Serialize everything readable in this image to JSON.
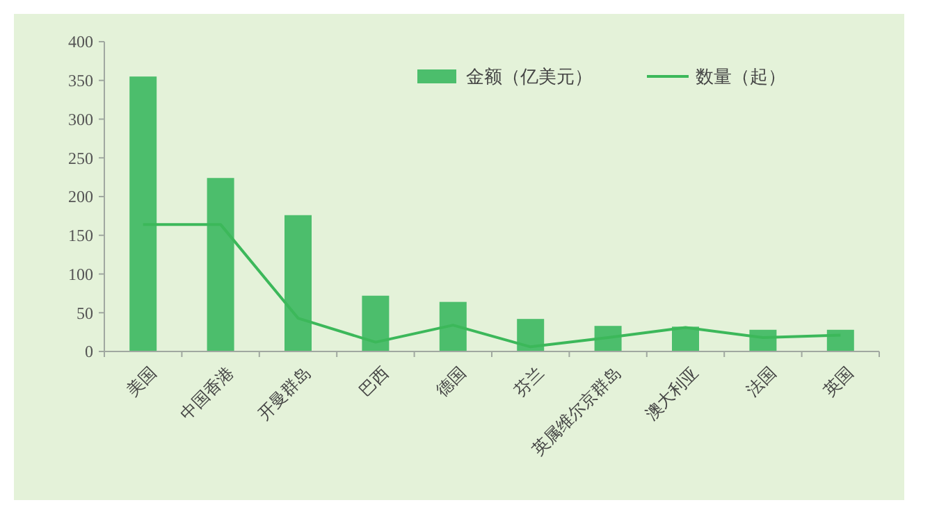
{
  "chart_data": {
    "type": "bar",
    "categories": [
      "美国",
      "中国香港",
      "开曼群岛",
      "巴西",
      "德国",
      "芬兰",
      "英属维尔京群岛",
      "澳大利亚",
      "法国",
      "英国"
    ],
    "series": [
      {
        "name": "金额（亿美元）",
        "color": "#4cbe6c",
        "values": [
          355,
          224,
          176,
          72,
          64,
          42,
          33,
          32,
          28,
          28
        ]
      },
      {
        "name": "数量（起）",
        "type": "line",
        "color": "#3cb85a",
        "values": [
          164,
          164,
          43,
          12,
          34,
          6,
          18,
          31,
          18,
          21
        ]
      }
    ],
    "ylim": [
      0,
      400
    ],
    "yticks": [
      0,
      50,
      100,
      150,
      200,
      250,
      300,
      350,
      400
    ],
    "grid": false,
    "legend": "top right",
    "marker": "none"
  }
}
